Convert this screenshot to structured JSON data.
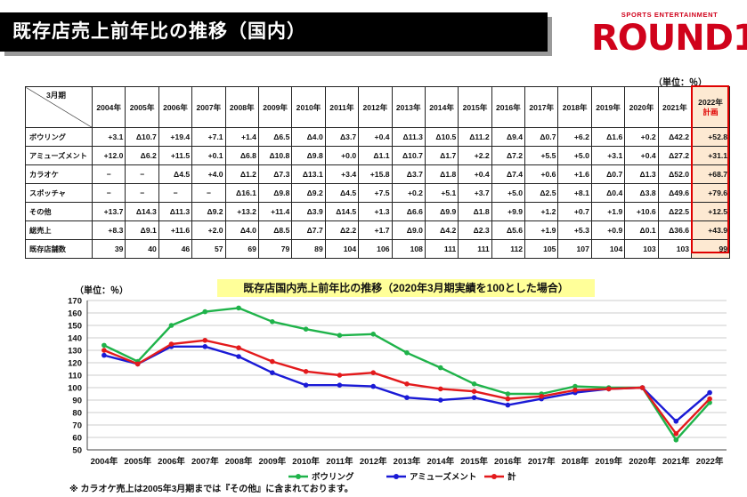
{
  "header": {
    "title": "既存店売上前年比の推移（国内）",
    "logo_tagline": "SPORTS ENTERTAINMENT",
    "logo_word": "ROUND1"
  },
  "table": {
    "unit": "（単位：％）",
    "corner_label": "3月期",
    "years": [
      "2004年",
      "2005年",
      "2006年",
      "2007年",
      "2008年",
      "2009年",
      "2010年",
      "2011年",
      "2012年",
      "2013年",
      "2014年",
      "2015年",
      "2016年",
      "2017年",
      "2018年",
      "2019年",
      "2020年",
      "2021年"
    ],
    "plan_header": "2022年",
    "plan_sub": "計画",
    "rows": [
      {
        "label": "ボウリング",
        "values": [
          "+3.1",
          "Δ10.7",
          "+19.4",
          "+7.1",
          "+1.4",
          "Δ6.5",
          "Δ4.0",
          "Δ3.7",
          "+0.4",
          "Δ11.3",
          "Δ10.5",
          "Δ11.2",
          "Δ9.4",
          "Δ0.7",
          "+6.2",
          "Δ1.6",
          "+0.2",
          "Δ42.2"
        ],
        "plan": "+52.8"
      },
      {
        "label": "アミューズメント",
        "values": [
          "+12.0",
          "Δ6.2",
          "+11.5",
          "+0.1",
          "Δ6.8",
          "Δ10.8",
          "Δ9.8",
          "+0.0",
          "Δ1.1",
          "Δ10.7",
          "Δ1.7",
          "+2.2",
          "Δ7.2",
          "+5.5",
          "+5.0",
          "+3.1",
          "+0.4",
          "Δ27.2"
        ],
        "plan": "+31.1"
      },
      {
        "label": "カラオケ",
        "values": [
          "−",
          "−",
          "Δ4.5",
          "+4.0",
          "Δ1.2",
          "Δ7.3",
          "Δ13.1",
          "+3.4",
          "+15.8",
          "Δ3.7",
          "Δ1.8",
          "+0.4",
          "Δ7.4",
          "+0.6",
          "+1.6",
          "Δ0.7",
          "Δ1.3",
          "Δ52.0"
        ],
        "plan": "+68.7"
      },
      {
        "label": "スポッチャ",
        "values": [
          "−",
          "−",
          "−",
          "−",
          "Δ16.1",
          "Δ9.8",
          "Δ9.2",
          "Δ4.5",
          "+7.5",
          "+0.2",
          "+5.1",
          "+3.7",
          "+5.0",
          "Δ2.5",
          "+8.1",
          "Δ0.4",
          "Δ3.8",
          "Δ49.6"
        ],
        "plan": "+79.6"
      },
      {
        "label": "その他",
        "values": [
          "+13.7",
          "Δ14.3",
          "Δ11.3",
          "Δ9.2",
          "+13.2",
          "+11.4",
          "Δ3.9",
          "Δ14.5",
          "+1.3",
          "Δ6.6",
          "Δ9.9",
          "Δ1.8",
          "+9.9",
          "+1.2",
          "+0.7",
          "+1.9",
          "+10.6",
          "Δ22.5"
        ],
        "plan": "+12.5"
      },
      {
        "label": "総売上",
        "values": [
          "+8.3",
          "Δ9.1",
          "+11.6",
          "+2.0",
          "Δ4.0",
          "Δ8.5",
          "Δ7.7",
          "Δ2.2",
          "+1.7",
          "Δ9.0",
          "Δ4.2",
          "Δ2.3",
          "Δ5.6",
          "+1.9",
          "+5.3",
          "+0.9",
          "Δ0.1",
          "Δ36.6"
        ],
        "plan": "+43.9"
      },
      {
        "label": "既存店舗数",
        "values": [
          "39",
          "40",
          "46",
          "57",
          "69",
          "79",
          "89",
          "104",
          "106",
          "108",
          "111",
          "111",
          "112",
          "105",
          "107",
          "104",
          "103",
          "103"
        ],
        "plan": "99"
      }
    ]
  },
  "chart_data": {
    "type": "line",
    "title": "既存店国内売上前年比の推移（2020年3月期実績を100とした場合）",
    "ylabel": "（単位：％）",
    "x": [
      "2004年",
      "2005年",
      "2006年",
      "2007年",
      "2008年",
      "2009年",
      "2010年",
      "2011年",
      "2012年",
      "2013年",
      "2014年",
      "2015年",
      "2016年",
      "2017年",
      "2018年",
      "2019年",
      "2020年",
      "2021年",
      "2022年"
    ],
    "ylim": [
      50,
      170
    ],
    "yticks": [
      50,
      60,
      70,
      80,
      90,
      100,
      110,
      120,
      130,
      140,
      150,
      160,
      170
    ],
    "grid": true,
    "legend": "bottom",
    "series": [
      {
        "name": "ボウリング",
        "color": "#1fb34a",
        "values": [
          134,
          121,
          150,
          161,
          164,
          153,
          147,
          142,
          143,
          128,
          116,
          103,
          95,
          95,
          101,
          100,
          100,
          58,
          88
        ]
      },
      {
        "name": "アミューズメント",
        "color": "#1a1ad6",
        "values": [
          126,
          119,
          133,
          133,
          125,
          112,
          102,
          102,
          101,
          92,
          90,
          92,
          86,
          91,
          96,
          99,
          100,
          73,
          96
        ]
      },
      {
        "name": "計",
        "color": "#e31a1c",
        "values": [
          130,
          119,
          135,
          138,
          132,
          121,
          113,
          110,
          112,
          103,
          99,
          97,
          91,
          93,
          98,
          99,
          100,
          63,
          91
        ]
      }
    ]
  },
  "footnote": "※ カラオケ売上は2005年3月期までは『その他』に含まれております。"
}
